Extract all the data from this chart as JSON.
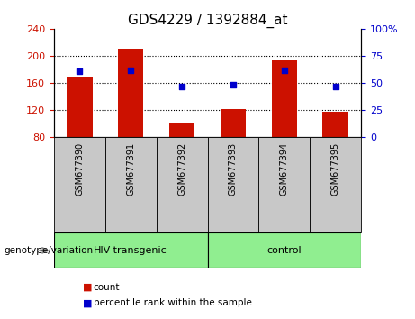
{
  "title": "GDS4229 / 1392884_at",
  "categories": [
    "GSM677390",
    "GSM677391",
    "GSM677392",
    "GSM677393",
    "GSM677394",
    "GSM677395"
  ],
  "bar_values": [
    170,
    210,
    100,
    122,
    193,
    117
  ],
  "bar_bottom": 80,
  "percentile_values": [
    61,
    62,
    47,
    48,
    62,
    47
  ],
  "ylim_left": [
    80,
    240
  ],
  "ylim_right": [
    0,
    100
  ],
  "yticks_left": [
    80,
    120,
    160,
    200,
    240
  ],
  "yticks_right": [
    0,
    25,
    50,
    75,
    100
  ],
  "grid_yticks": [
    120,
    160,
    200
  ],
  "bar_color": "#CC1100",
  "dot_color": "#0000CC",
  "plot_bg": "#FFFFFF",
  "label_bg": "#C8C8C8",
  "group1_label": "HIV-transgenic",
  "group2_label": "control",
  "group_bg": "#90EE90",
  "legend_count_label": "count",
  "legend_pct_label": "percentile rank within the sample",
  "genotype_label": "genotype/variation",
  "left_axis_color": "#CC1100",
  "right_axis_color": "#0000CC",
  "title_fontsize": 11,
  "tick_fontsize": 8,
  "label_fontsize": 8
}
